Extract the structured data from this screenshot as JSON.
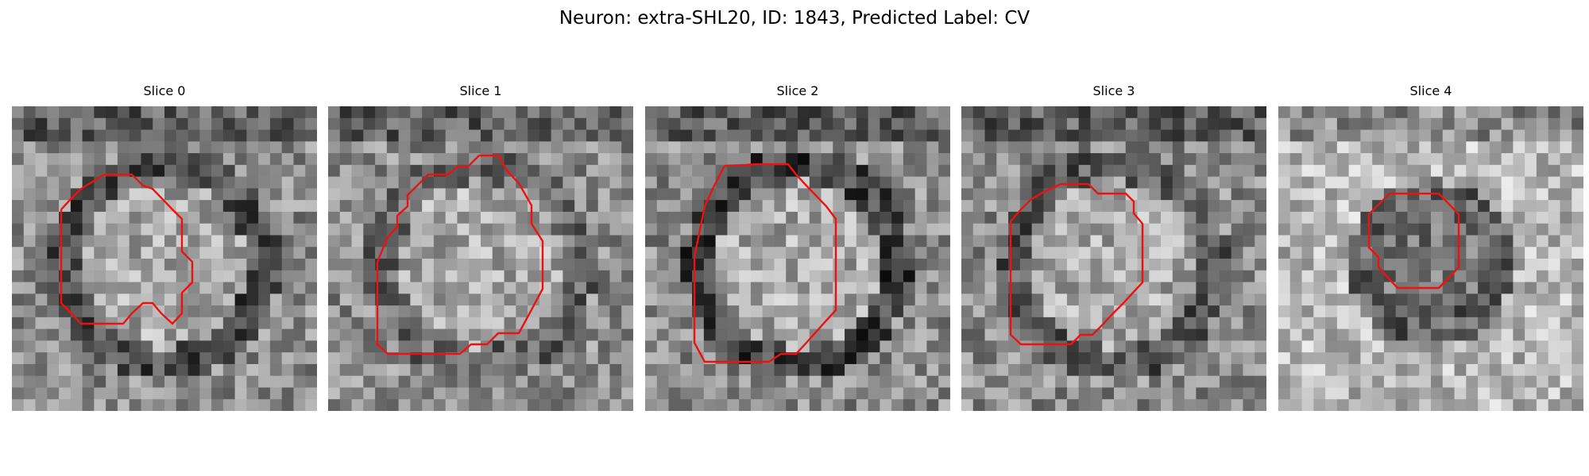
{
  "figure": {
    "title": "Neuron: extra-SHL20, ID: 1843, Predicted Label: CV",
    "contour_color": "#ee1111",
    "image_colormap": "gray"
  },
  "slices": [
    {
      "title": "Slice 0",
      "cell_shape": "ring",
      "ring_level": 0.3
    },
    {
      "title": "Slice 1",
      "cell_shape": "ring",
      "ring_level": 0.4
    },
    {
      "title": "Slice 2",
      "cell_shape": "ring",
      "ring_level": 0.25
    },
    {
      "title": "Slice 3",
      "cell_shape": "ring",
      "ring_level": 0.35
    },
    {
      "title": "Slice 4",
      "cell_shape": "dark-core",
      "ring_level": 0.45
    }
  ]
}
